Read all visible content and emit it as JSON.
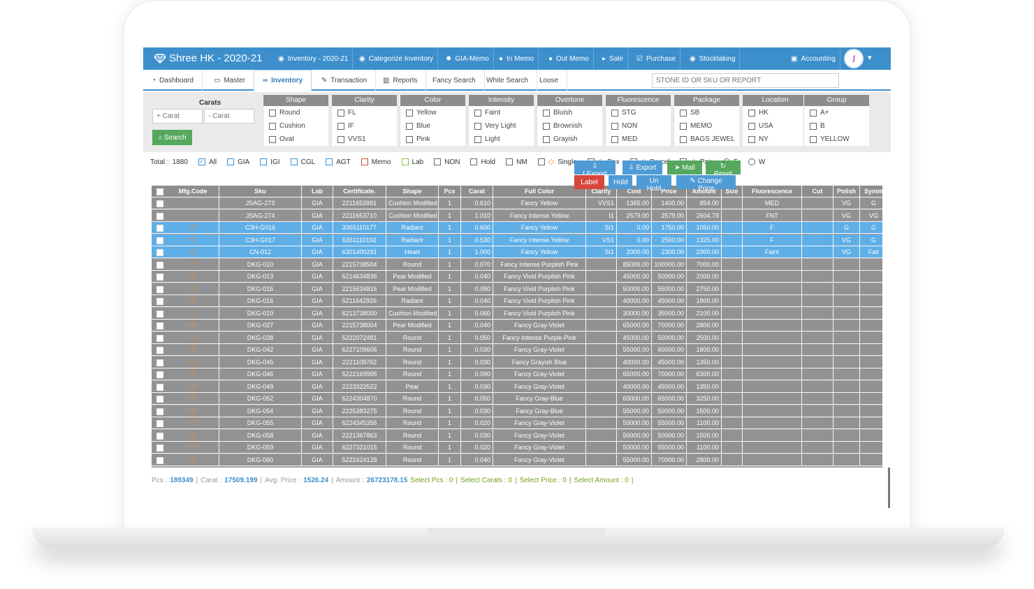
{
  "app": {
    "title": "Shree HK - 2020-21"
  },
  "topnav": [
    {
      "label": "Inventory - 2020-21",
      "icon": "eye-icon"
    },
    {
      "label": "Categorize Inventory",
      "icon": "eye-icon"
    },
    {
      "label": "GIA-Memo",
      "icon": "gear-icon"
    },
    {
      "label": "In Memo",
      "icon": "user-icon"
    },
    {
      "label": "Out Memo",
      "icon": "user-icon"
    },
    {
      "label": "Sale",
      "icon": "tag-icon"
    },
    {
      "label": "Purchase",
      "icon": "check-icon"
    },
    {
      "label": "Stocktaking",
      "icon": "eye-icon"
    },
    {
      "label": "Accounting",
      "icon": "money-icon"
    }
  ],
  "menu": [
    {
      "label": "Dashboard",
      "icon": "dashboard-icon"
    },
    {
      "label": "Master",
      "icon": "monitor-icon"
    },
    {
      "label": "Inventory",
      "icon": "binoculars-icon"
    },
    {
      "label": "Transaction",
      "icon": "edit-icon"
    },
    {
      "label": "Reports",
      "icon": "bar-chart-icon"
    },
    {
      "label": "Fancy Search",
      "icon": ""
    },
    {
      "label": "White Search",
      "icon": ""
    },
    {
      "label": "Loose",
      "icon": ""
    }
  ],
  "search": {
    "placeholder": "STONE ID OR SKU OR REPORT"
  },
  "carats": {
    "title": "Carats",
    "min_placeholder": "+ Carat",
    "max_placeholder": "- Carat",
    "search_label": "Search"
  },
  "filters": [
    {
      "title": "Shape",
      "options": [
        "Round",
        "Cushion",
        "Oval"
      ]
    },
    {
      "title": "Clarity",
      "options": [
        "FL",
        "IF",
        "VVS1"
      ]
    },
    {
      "title": "Color",
      "options": [
        "Yellow",
        "Blue",
        "Pink"
      ]
    },
    {
      "title": "Intensity",
      "options": [
        "Faint",
        "Very Light",
        "Light"
      ]
    },
    {
      "title": "Overtone",
      "options": [
        "Bluish",
        "Brownish",
        "Grayish"
      ]
    },
    {
      "title": "Fluorescence",
      "options": [
        "STG",
        "NON",
        "MED"
      ]
    },
    {
      "title": "Package",
      "options": [
        "SB",
        "MEMO",
        "BAGS JEWEL"
      ]
    },
    {
      "title": "Location",
      "options": [
        "HK",
        "USA",
        "NY"
      ]
    },
    {
      "title": "Group",
      "options": [
        "A+",
        "B",
        "YELLOW"
      ]
    }
  ],
  "summary": {
    "total_label": "Total :",
    "total": "1880"
  },
  "summary_filters": [
    "All",
    "GIA",
    "IGI",
    "CGL",
    "AGT",
    "Memo",
    "Lab",
    "NON",
    "Hold",
    "NM",
    "Single",
    "Box",
    "Parcel",
    "Pair",
    "F",
    "W"
  ],
  "actions": {
    "iexport": "I.Export",
    "export": "Export",
    "mail": "Mail",
    "reset": "Reset",
    "label": "Label",
    "hold": "Hold",
    "unhold": "Un Hold",
    "change_price": "Change Price"
  },
  "columns": [
    "Mfg.Code",
    "Sku",
    "Lab",
    "Certificate.",
    "Shape",
    "Pcs",
    "Carat",
    "Full Color",
    "Clarity",
    "Cost",
    "Price",
    "Amount",
    "Size",
    "Fluorescence",
    "Cut",
    "Polish",
    "Symm"
  ],
  "rows": [
    {
      "sku": "JSAG-273",
      "lab": "GIA",
      "cert": "2211653991",
      "shape": "Cushion Modified",
      "pcs": "1",
      "carat": "0.610",
      "color": "Fancy Yellow",
      "clarity": "VVS1",
      "cost": "1365.00",
      "price": "1400.00",
      "amount": "854.00",
      "size": "",
      "fluor": "MED",
      "cut": "",
      "polish": "VG",
      "symm": "G",
      "selected": false
    },
    {
      "sku": "JSAG-274",
      "lab": "GIA",
      "cert": "2211653710",
      "shape": "Cushion Modified",
      "pcs": "1",
      "carat": "1.010",
      "color": "Fancy Intense Yellow",
      "clarity": "I1",
      "cost": "2579.00",
      "price": "2579.00",
      "amount": "2604.79",
      "size": "",
      "fluor": "FNT",
      "cut": "",
      "polish": "VG",
      "symm": "VG",
      "selected": false
    },
    {
      "sku": "C3H-G016",
      "lab": "GIA",
      "cert": "3365110177",
      "shape": "Radiant",
      "pcs": "1",
      "carat": "0.600",
      "color": "Fancy Yellow",
      "clarity": "SI1",
      "cost": "0.00",
      "price": "1750.00",
      "amount": "1050.00",
      "size": "",
      "fluor": "F",
      "cut": "",
      "polish": "G",
      "symm": "G",
      "selected": true
    },
    {
      "sku": "C3H-G017",
      "lab": "GIA",
      "cert": "6361110192",
      "shape": "Radiant",
      "pcs": "1",
      "carat": "0.530",
      "color": "Fancy Intense Yellow",
      "clarity": "VS1",
      "cost": "0.00",
      "price": "2500.00",
      "amount": "1325.00",
      "size": "",
      "fluor": "F",
      "cut": "",
      "polish": "VG",
      "symm": "G",
      "selected": true
    },
    {
      "sku": "CN-012",
      "lab": "GIA",
      "cert": "6301400291",
      "shape": "Heart",
      "pcs": "1",
      "carat": "1.000",
      "color": "Fancy Yellow",
      "clarity": "SI1",
      "cost": "2000.00",
      "price": "2300.00",
      "amount": "2300.00",
      "size": "",
      "fluor": "Faint",
      "cut": "",
      "polish": "VG",
      "symm": "Fair",
      "selected": true
    },
    {
      "sku": "DKG-010",
      "lab": "GIA",
      "cert": "2215738504",
      "shape": "Round",
      "pcs": "1",
      "carat": "0.070",
      "color": "Fancy Intense Purplish Pink",
      "clarity": "",
      "cost": "85000.00",
      "price": "100000.00",
      "amount": "7000.00",
      "size": "",
      "fluor": "",
      "cut": "",
      "polish": "",
      "symm": "",
      "selected": false
    },
    {
      "sku": "DKG-013",
      "lab": "GIA",
      "cert": "6214634836",
      "shape": "Pear Modified",
      "pcs": "1",
      "carat": "0.040",
      "color": "Fancy Vivid Purplish Pink",
      "clarity": "",
      "cost": "45000.00",
      "price": "50000.00",
      "amount": "2000.00",
      "size": "",
      "fluor": "",
      "cut": "",
      "polish": "",
      "symm": "",
      "selected": false
    },
    {
      "sku": "DKG-015",
      "lab": "GIA",
      "cert": "2215634816",
      "shape": "Pear Modified",
      "pcs": "1",
      "carat": "0.050",
      "color": "Fancy Vivid Purplish Pink",
      "clarity": "",
      "cost": "50000.00",
      "price": "55000.00",
      "amount": "2750.00",
      "size": "",
      "fluor": "",
      "cut": "",
      "polish": "",
      "symm": "",
      "selected": false
    },
    {
      "sku": "DKG-016",
      "lab": "GIA",
      "cert": "5211642926",
      "shape": "Radiant",
      "pcs": "1",
      "carat": "0.040",
      "color": "Fancy Vivid Purplish Pink",
      "clarity": "",
      "cost": "40000.00",
      "price": "45000.00",
      "amount": "1800.00",
      "size": "",
      "fluor": "",
      "cut": "",
      "polish": "",
      "symm": "",
      "selected": false
    },
    {
      "sku": "DKG-019",
      "lab": "GIA",
      "cert": "6213738000",
      "shape": "Cushion Modified",
      "pcs": "1",
      "carat": "0.060",
      "color": "Fancy Vivid Purplish Pink",
      "clarity": "",
      "cost": "30000.00",
      "price": "35000.00",
      "amount": "2100.00",
      "size": "",
      "fluor": "",
      "cut": "",
      "polish": "",
      "symm": "",
      "selected": false
    },
    {
      "sku": "DKG-027",
      "lab": "GIA",
      "cert": "2215738004",
      "shape": "Pear Modified",
      "pcs": "1",
      "carat": "0.040",
      "color": "Fancy Gray-Violet",
      "clarity": "",
      "cost": "65000.00",
      "price": "70000.00",
      "amount": "2800.00",
      "size": "",
      "fluor": "",
      "cut": "",
      "polish": "",
      "symm": "",
      "selected": false
    },
    {
      "sku": "DKG-038",
      "lab": "GIA",
      "cert": "5222072481",
      "shape": "Round",
      "pcs": "1",
      "carat": "0.050",
      "color": "Fancy Intense Purple-Pink",
      "clarity": "",
      "cost": "45000.00",
      "price": "50000.00",
      "amount": "2500.00",
      "size": "",
      "fluor": "",
      "cut": "",
      "polish": "",
      "symm": "",
      "selected": false
    },
    {
      "sku": "DKG-042",
      "lab": "GIA",
      "cert": "6227109606",
      "shape": "Round",
      "pcs": "1",
      "carat": "0.030",
      "color": "Fancy Gray-Violet",
      "clarity": "",
      "cost": "55000.00",
      "price": "60000.00",
      "amount": "1800.00",
      "size": "",
      "fluor": "",
      "cut": "",
      "polish": "",
      "symm": "",
      "selected": false
    },
    {
      "sku": "DKG-045",
      "lab": "GIA",
      "cert": "2221109762",
      "shape": "Round",
      "pcs": "1",
      "carat": "0.030",
      "color": "Fancy Grayish Blue",
      "clarity": "",
      "cost": "40000.00",
      "price": "45000.00",
      "amount": "1350.00",
      "size": "",
      "fluor": "",
      "cut": "",
      "polish": "",
      "symm": "",
      "selected": false
    },
    {
      "sku": "DKG-046",
      "lab": "GIA",
      "cert": "5222169995",
      "shape": "Round",
      "pcs": "1",
      "carat": "0.090",
      "color": "Fancy Gray-Violet",
      "clarity": "",
      "cost": "65000.00",
      "price": "70000.00",
      "amount": "6300.00",
      "size": "",
      "fluor": "",
      "cut": "",
      "polish": "",
      "symm": "",
      "selected": false
    },
    {
      "sku": "DKG-049",
      "lab": "GIA",
      "cert": "2223322522",
      "shape": "Pear",
      "pcs": "1",
      "carat": "0.030",
      "color": "Fancy Gray-Violet",
      "clarity": "",
      "cost": "40000.00",
      "price": "45000.00",
      "amount": "1350.00",
      "size": "",
      "fluor": "",
      "cut": "",
      "polish": "",
      "symm": "",
      "selected": false
    },
    {
      "sku": "DKG-052",
      "lab": "GIA",
      "cert": "6224304870",
      "shape": "Round",
      "pcs": "1",
      "carat": "0.050",
      "color": "Fancy Gray-Blue",
      "clarity": "",
      "cost": "60000.00",
      "price": "65000.00",
      "amount": "3250.00",
      "size": "",
      "fluor": "",
      "cut": "",
      "polish": "",
      "symm": "",
      "selected": false
    },
    {
      "sku": "DKG-054",
      "lab": "GIA",
      "cert": "2225383275",
      "shape": "Round",
      "pcs": "1",
      "carat": "0.030",
      "color": "Fancy Gray-Blue",
      "clarity": "",
      "cost": "55000.00",
      "price": "50000.00",
      "amount": "1500.00",
      "size": "",
      "fluor": "",
      "cut": "",
      "polish": "",
      "symm": "",
      "selected": false
    },
    {
      "sku": "DKG-055",
      "lab": "GIA",
      "cert": "6224345356",
      "shape": "Round",
      "pcs": "1",
      "carat": "0.020",
      "color": "Fancy Gray-Violet",
      "clarity": "",
      "cost": "50000.00",
      "price": "55000.00",
      "amount": "1100.00",
      "size": "",
      "fluor": "",
      "cut": "",
      "polish": "",
      "symm": "",
      "selected": false
    },
    {
      "sku": "DKG-058",
      "lab": "GIA",
      "cert": "2221367863",
      "shape": "Round",
      "pcs": "1",
      "carat": "0.030",
      "color": "Fancy Gray-Violet",
      "clarity": "",
      "cost": "50000.00",
      "price": "50000.00",
      "amount": "1500.00",
      "size": "",
      "fluor": "",
      "cut": "",
      "polish": "",
      "symm": "",
      "selected": false
    },
    {
      "sku": "DKG-059",
      "lab": "GIA",
      "cert": "6227321015",
      "shape": "Round",
      "pcs": "1",
      "carat": "0.020",
      "color": "Fancy Gray-Violet",
      "clarity": "",
      "cost": "50000.00",
      "price": "55000.00",
      "amount": "1100.00",
      "size": "",
      "fluor": "",
      "cut": "",
      "polish": "",
      "symm": "",
      "selected": false
    },
    {
      "sku": "DKG-060",
      "lab": "GIA",
      "cert": "5222424128",
      "shape": "Round",
      "pcs": "1",
      "carat": "0.040",
      "color": "Fancy Gray-Violet",
      "clarity": "",
      "cost": "55000.00",
      "price": "70000.00",
      "amount": "2800.00",
      "size": "",
      "fluor": "",
      "cut": "",
      "polish": "",
      "symm": "",
      "selected": false
    }
  ],
  "footer": {
    "pcs_label": "Pcs :",
    "pcs": "189349",
    "carat_label": "Carat :",
    "carat": "17509.199",
    "avg_label": "Avg. Price :",
    "avg": "1526.24",
    "amount_label": "Amount :",
    "amount": "26723178.15",
    "sel_pcs": "Select Pcs : 0",
    "sel_carats": "Select Carats : 0",
    "sel_price": "Select Price : 0",
    "sel_amount": "Select Amount : 0",
    "sep": "|"
  },
  "colors": {
    "primary": "#3d8fcc",
    "success": "#55a85e",
    "danger": "#d8473c",
    "grid": "#929292",
    "selected": "#5faee6",
    "diamond": "#ff8b2c"
  }
}
